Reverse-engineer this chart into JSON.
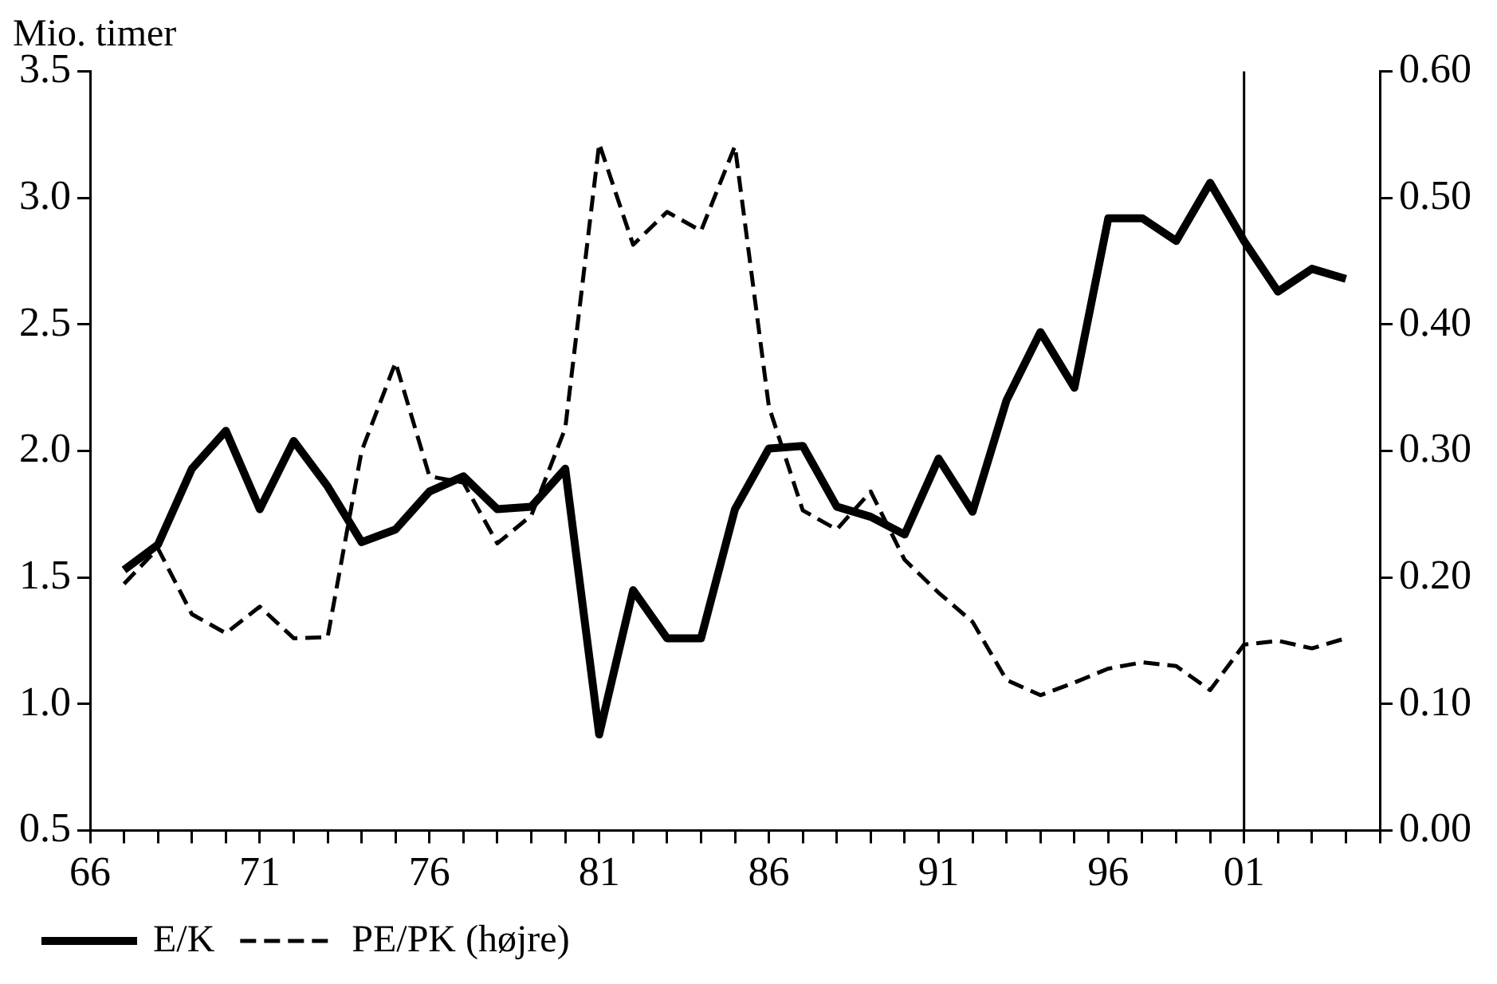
{
  "chart_data": {
    "type": "line",
    "ylabel": "Mio. timer",
    "categories": [
      "66",
      null,
      null,
      null,
      null,
      "71",
      null,
      null,
      null,
      null,
      "76",
      null,
      null,
      null,
      null,
      "81",
      null,
      null,
      null,
      null,
      "86",
      null,
      null,
      null,
      null,
      "91",
      null,
      null,
      null,
      null,
      "96",
      null,
      null,
      null,
      "01",
      null,
      null,
      null,
      null
    ],
    "series": [
      {
        "name": "E/K",
        "color": "#000000",
        "line_style": "solid",
        "values": [
          null,
          1.53,
          1.63,
          1.93,
          2.08,
          1.77,
          2.04,
          1.86,
          1.64,
          1.69,
          1.84,
          1.9,
          1.77,
          1.78,
          1.93,
          0.88,
          1.45,
          1.26,
          1.26,
          1.77,
          2.01,
          2.02,
          1.78,
          1.74,
          1.67,
          1.97,
          1.76,
          2.2,
          2.47,
          2.25,
          2.92,
          2.92,
          2.83,
          3.06,
          2.83,
          2.63,
          2.72,
          2.68,
          null
        ]
      },
      {
        "name": "PE/PK (højre)",
        "color": "#000000",
        "line_style": "dashed",
        "axis": "y2",
        "values": [
          null,
          0.195,
          0.223,
          0.171,
          0.156,
          0.177,
          0.152,
          0.153,
          0.3,
          0.37,
          0.28,
          0.275,
          0.227,
          0.249,
          0.318,
          0.543,
          0.463,
          0.489,
          0.474,
          0.541,
          0.335,
          0.253,
          0.238,
          0.268,
          0.214,
          0.188,
          0.165,
          0.119,
          0.107,
          0.117,
          0.128,
          0.133,
          0.13,
          0.111,
          0.147,
          0.15,
          0.144,
          0.152,
          null
        ]
      }
    ],
    "ylim": [
      0.5,
      3.5
    ],
    "yticks": [
      {
        "value": 0.5,
        "label": "0.5"
      },
      {
        "value": 1,
        "label": "1.0"
      },
      {
        "value": 1.5,
        "label": "1.5"
      },
      {
        "value": 2,
        "label": "2.0"
      },
      {
        "value": 2.5,
        "label": "2.5"
      },
      {
        "value": 3,
        "label": "3.0"
      },
      {
        "value": 3.5,
        "label": "3.5"
      }
    ],
    "y2lim": [
      0,
      0.6
    ],
    "y2ticks": [
      {
        "value": 0,
        "label": "0.00"
      },
      {
        "value": 0.1,
        "label": "0.10"
      },
      {
        "value": 0.2,
        "label": "0.20"
      },
      {
        "value": 0.3,
        "label": "0.30"
      },
      {
        "value": 0.4,
        "label": "0.40"
      },
      {
        "value": 0.5,
        "label": "0.50"
      },
      {
        "value": 0.6,
        "label": "0.60"
      }
    ],
    "ref_lines": [
      {
        "axis": "x",
        "value": "01",
        "color": "#000000"
      }
    ],
    "legend": "bottom left"
  }
}
